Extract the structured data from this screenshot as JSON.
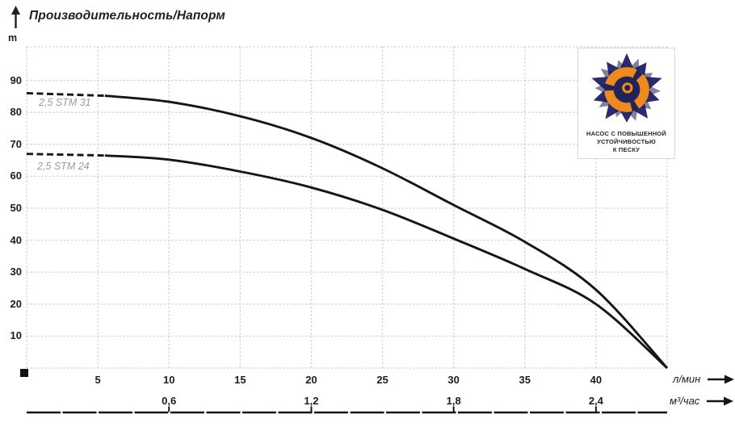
{
  "title": "Производительность/Напорм",
  "y_axis": {
    "unit_label": "m",
    "ticks": [
      90,
      80,
      70,
      60,
      50,
      40,
      30,
      20,
      10
    ]
  },
  "x_axis_primary": {
    "unit_label": "л/мин",
    "ticks": [
      5,
      10,
      15,
      20,
      25,
      30,
      35,
      40
    ]
  },
  "x_axis_secondary": {
    "unit_label": "м³/час",
    "ticks": [
      {
        "label": "0,6",
        "lmin": 10
      },
      {
        "label": "1,2",
        "lmin": 20
      },
      {
        "label": "1,8",
        "lmin": 30
      },
      {
        "label": "2,4",
        "lmin": 40
      }
    ]
  },
  "chart_data": {
    "type": "line",
    "title": "Производительность/Напорм",
    "ylabel": "m",
    "xlabel_primary": "л/мин",
    "xlabel_secondary": "м³/час",
    "x_range_lmin": [
      0,
      45
    ],
    "y_range_m": [
      0,
      100
    ],
    "grid": "dashed light-gray, every 5 л/мин and every 10 m",
    "legend_position": "labels next to curve starts",
    "series": [
      {
        "name": "2,5 STM 31",
        "dash_until_v": 5.5,
        "points_lmin_m": [
          [
            0,
            86
          ],
          [
            5.5,
            85.2
          ],
          [
            10,
            83.3
          ],
          [
            15,
            78.8
          ],
          [
            20,
            72
          ],
          [
            25,
            62.5
          ],
          [
            30,
            51
          ],
          [
            35,
            39.5
          ],
          [
            40,
            24.5
          ],
          [
            45,
            0
          ]
        ]
      },
      {
        "name": "2,5 STM 24",
        "dash_until_v": 5.5,
        "points_lmin_m": [
          [
            0,
            67
          ],
          [
            5.5,
            66.5
          ],
          [
            10,
            65.2
          ],
          [
            15,
            61.5
          ],
          [
            20,
            56.5
          ],
          [
            25,
            49.5
          ],
          [
            30,
            40.5
          ],
          [
            35,
            31
          ],
          [
            40,
            20
          ],
          [
            45,
            0
          ]
        ]
      }
    ]
  },
  "logo": {
    "caption_line1": "НАСОС С ПОВЫШЕННОЙ",
    "caption_line2": "УСТОЙЧИВОСТЬЮ",
    "caption_line3": "К ПЕСКУ"
  },
  "colors": {
    "curve": "#161616",
    "grid": "#cccccc",
    "series_label": "#9b9b9b",
    "logo_navy": "#2b2a6e",
    "logo_navy_dark": "#1c1b4e",
    "logo_orange": "#ef8a1f"
  }
}
